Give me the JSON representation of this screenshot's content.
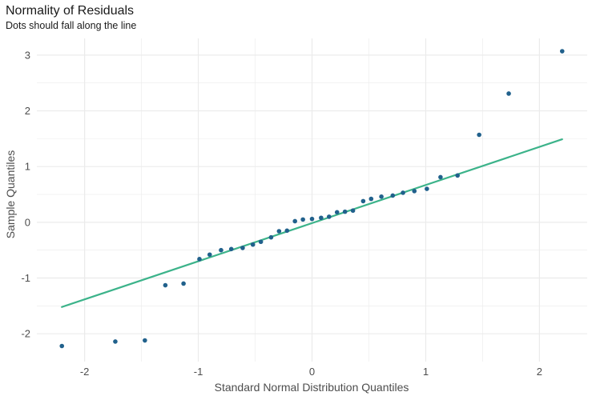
{
  "chart_data": {
    "type": "scatter",
    "title": "Normality of Residuals",
    "subtitle": "Dots should fall along the line",
    "xlabel": "Standard Normal Distribution Quantiles",
    "ylabel": "Sample Quantiles",
    "xlim": [
      -2.42,
      2.42
    ],
    "ylim": [
      -2.5,
      3.3
    ],
    "xticks": [
      -2,
      -1,
      0,
      1,
      2
    ],
    "yticks": [
      -2,
      -1,
      0,
      1,
      2,
      3
    ],
    "grid": true,
    "colors": {
      "points": "#21618c",
      "line": "#3cb38a",
      "grid": "#ebebeb"
    },
    "points": [
      {
        "x": -2.2,
        "y": -2.22
      },
      {
        "x": -1.73,
        "y": -2.14
      },
      {
        "x": -1.47,
        "y": -2.12
      },
      {
        "x": -1.29,
        "y": -1.13
      },
      {
        "x": -1.13,
        "y": -1.1
      },
      {
        "x": -0.99,
        "y": -0.66
      },
      {
        "x": -0.9,
        "y": -0.58
      },
      {
        "x": -0.8,
        "y": -0.5
      },
      {
        "x": -0.71,
        "y": -0.48
      },
      {
        "x": -0.61,
        "y": -0.46
      },
      {
        "x": -0.52,
        "y": -0.4
      },
      {
        "x": -0.45,
        "y": -0.35
      },
      {
        "x": -0.36,
        "y": -0.27
      },
      {
        "x": -0.29,
        "y": -0.16
      },
      {
        "x": -0.22,
        "y": -0.15
      },
      {
        "x": -0.15,
        "y": 0.02
      },
      {
        "x": -0.08,
        "y": 0.05
      },
      {
        "x": 0.0,
        "y": 0.06
      },
      {
        "x": 0.08,
        "y": 0.08
      },
      {
        "x": 0.15,
        "y": 0.1
      },
      {
        "x": 0.22,
        "y": 0.18
      },
      {
        "x": 0.29,
        "y": 0.19
      },
      {
        "x": 0.36,
        "y": 0.21
      },
      {
        "x": 0.45,
        "y": 0.38
      },
      {
        "x": 0.52,
        "y": 0.42
      },
      {
        "x": 0.61,
        "y": 0.46
      },
      {
        "x": 0.71,
        "y": 0.48
      },
      {
        "x": 0.8,
        "y": 0.53
      },
      {
        "x": 0.9,
        "y": 0.56
      },
      {
        "x": 1.01,
        "y": 0.6
      },
      {
        "x": 1.13,
        "y": 0.81
      },
      {
        "x": 1.28,
        "y": 0.84
      },
      {
        "x": 1.47,
        "y": 1.57
      },
      {
        "x": 1.73,
        "y": 2.31
      },
      {
        "x": 2.2,
        "y": 3.07
      }
    ],
    "reference_line": {
      "x": [
        -2.2,
        2.2
      ],
      "y": [
        -1.52,
        1.49
      ]
    }
  }
}
